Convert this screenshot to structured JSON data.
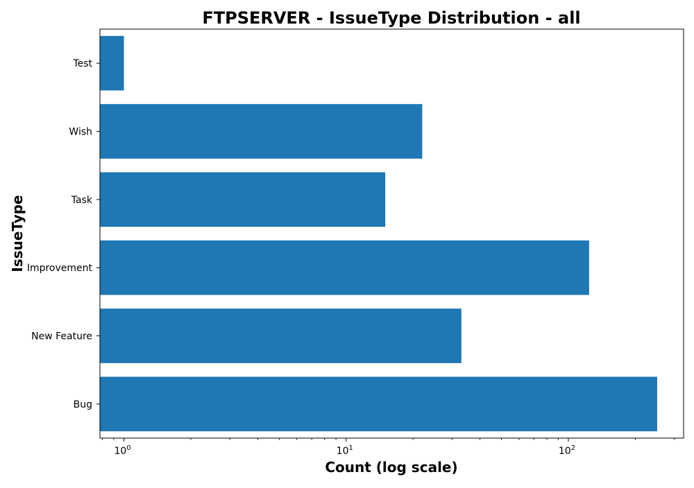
{
  "chart_data": {
    "type": "bar",
    "orientation": "horizontal",
    "title": "FTPSERVER - IssueType Distribution - all",
    "xlabel": "Count (log scale)",
    "ylabel": "IssueType",
    "x_scale": "log",
    "xlim": [
      0.78,
      330
    ],
    "x_ticks": [
      {
        "base": "10",
        "exp": "0",
        "value": 1
      },
      {
        "base": "10",
        "exp": "1",
        "value": 10
      },
      {
        "base": "10",
        "exp": "2",
        "value": 100
      }
    ],
    "categories": [
      "Test",
      "Wish",
      "Task",
      "Improvement",
      "New Feature",
      "Bug"
    ],
    "values": [
      1,
      22,
      15,
      124,
      33,
      251
    ],
    "bar_color": "#1f77b4",
    "grid": false,
    "legend": "none"
  }
}
